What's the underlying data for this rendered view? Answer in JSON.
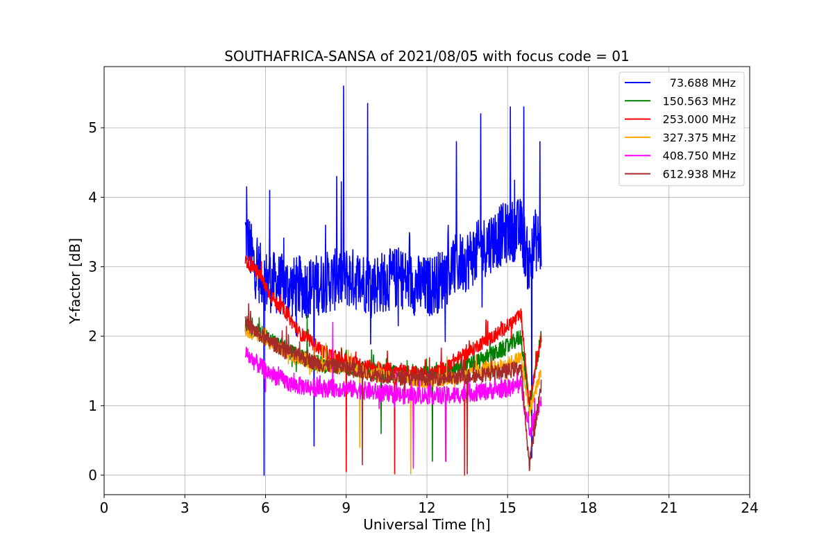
{
  "chart_data": {
    "type": "line",
    "title": "SOUTHAFRICA-SANSA of 2021/08/05 with focus code = 01",
    "xlabel": "Universal Time [h]",
    "ylabel": "Y-factor [dB]",
    "xlim": [
      0,
      24
    ],
    "ylim": [
      -0.28,
      5.88
    ],
    "xticks": [
      0,
      3,
      6,
      9,
      12,
      15,
      18,
      21,
      24
    ],
    "yticks": [
      0,
      1,
      2,
      3,
      4,
      5
    ],
    "grid": true,
    "legend_position": "top-right",
    "series": [
      {
        "name": "73.688 MHz",
        "color": "#0000ff",
        "x": [
          5.25,
          5.6,
          6.0,
          6.5,
          7.0,
          7.5,
          8.0,
          8.5,
          9.0,
          9.5,
          10.0,
          10.5,
          11.0,
          11.5,
          12.0,
          12.5,
          13.0,
          13.5,
          14.0,
          14.5,
          15.0,
          15.5,
          15.8,
          16.0,
          16.25
        ],
        "y": [
          3.5,
          3.0,
          2.8,
          2.75,
          2.7,
          2.7,
          2.75,
          2.8,
          2.85,
          2.8,
          2.75,
          2.8,
          2.85,
          2.75,
          2.7,
          2.8,
          3.0,
          3.1,
          3.25,
          3.4,
          3.5,
          3.55,
          3.0,
          3.4,
          3.3
        ],
        "spikes": [
          [
            5.3,
            4.15
          ],
          [
            6.15,
            4.1
          ],
          [
            5.95,
            0.0
          ],
          [
            7.8,
            0.42
          ],
          [
            8.9,
            5.6
          ],
          [
            9.8,
            5.35
          ],
          [
            8.65,
            4.3
          ],
          [
            13.1,
            4.8
          ],
          [
            14.0,
            5.2
          ],
          [
            15.1,
            5.3
          ],
          [
            15.6,
            5.3
          ],
          [
            15.9,
            0.25
          ],
          [
            16.2,
            4.8
          ]
        ]
      },
      {
        "name": "150.563 MHz",
        "color": "#008000",
        "x": [
          5.25,
          6.0,
          7.0,
          8.0,
          9.0,
          10.0,
          11.0,
          12.0,
          13.0,
          14.0,
          15.0,
          15.5,
          15.8,
          16.25
        ],
        "y": [
          2.15,
          2.0,
          1.75,
          1.6,
          1.55,
          1.5,
          1.45,
          1.45,
          1.5,
          1.65,
          1.85,
          2.0,
          1.0,
          2.0
        ],
        "spikes": [
          [
            7.55,
            2.3
          ],
          [
            9.0,
            1.8
          ],
          [
            10.3,
            0.6
          ],
          [
            12.2,
            0.2
          ]
        ]
      },
      {
        "name": "253.000 MHz",
        "color": "#ff0000",
        "x": [
          5.25,
          5.75,
          6.25,
          6.75,
          7.25,
          7.75,
          8.25,
          9.0,
          10.0,
          11.0,
          12.0,
          12.5,
          13.0,
          13.5,
          14.0,
          14.5,
          15.0,
          15.5,
          15.8,
          16.25
        ],
        "y": [
          3.1,
          2.9,
          2.55,
          2.35,
          2.05,
          1.9,
          1.75,
          1.65,
          1.55,
          1.5,
          1.45,
          1.5,
          1.65,
          1.75,
          1.9,
          2.0,
          2.15,
          2.3,
          1.05,
          2.0
        ],
        "spikes": [
          [
            9.0,
            0.05
          ],
          [
            10.8,
            0.02
          ],
          [
            13.4,
            0.0
          ]
        ]
      },
      {
        "name": "327.375 MHz",
        "color": "#ffa500",
        "x": [
          5.25,
          6.0,
          7.0,
          8.0,
          9.0,
          10.0,
          11.0,
          12.0,
          13.0,
          14.0,
          15.0,
          15.5,
          15.8,
          16.25
        ],
        "y": [
          2.1,
          1.95,
          1.7,
          1.6,
          1.55,
          1.45,
          1.4,
          1.35,
          1.4,
          1.5,
          1.6,
          1.7,
          0.9,
          1.5
        ],
        "spikes": [
          [
            11.4,
            0.02
          ],
          [
            9.5,
            0.4
          ]
        ]
      },
      {
        "name": "408.750 MHz",
        "color": "#ff00ff",
        "x": [
          5.25,
          6.0,
          7.0,
          8.0,
          9.0,
          10.0,
          11.0,
          12.0,
          13.0,
          14.0,
          15.0,
          15.5,
          15.8,
          16.25
        ],
        "y": [
          1.75,
          1.5,
          1.3,
          1.25,
          1.25,
          1.2,
          1.15,
          1.15,
          1.15,
          1.2,
          1.25,
          1.3,
          0.6,
          1.1
        ],
        "spikes": [
          [
            8.5,
            2.2
          ],
          [
            11.5,
            0.1
          ],
          [
            12.7,
            0.2
          ]
        ]
      },
      {
        "name": "612.938 MHz",
        "color": "#a52a2a",
        "x": [
          5.25,
          6.0,
          7.0,
          8.0,
          9.0,
          10.0,
          11.0,
          12.0,
          13.0,
          14.0,
          15.0,
          15.5,
          15.8,
          16.25
        ],
        "y": [
          2.2,
          1.95,
          1.75,
          1.6,
          1.55,
          1.45,
          1.4,
          1.4,
          1.4,
          1.45,
          1.5,
          1.55,
          0.15,
          1.3
        ],
        "spikes": [
          [
            9.6,
            0.15
          ],
          [
            13.5,
            0.02
          ]
        ]
      }
    ]
  }
}
